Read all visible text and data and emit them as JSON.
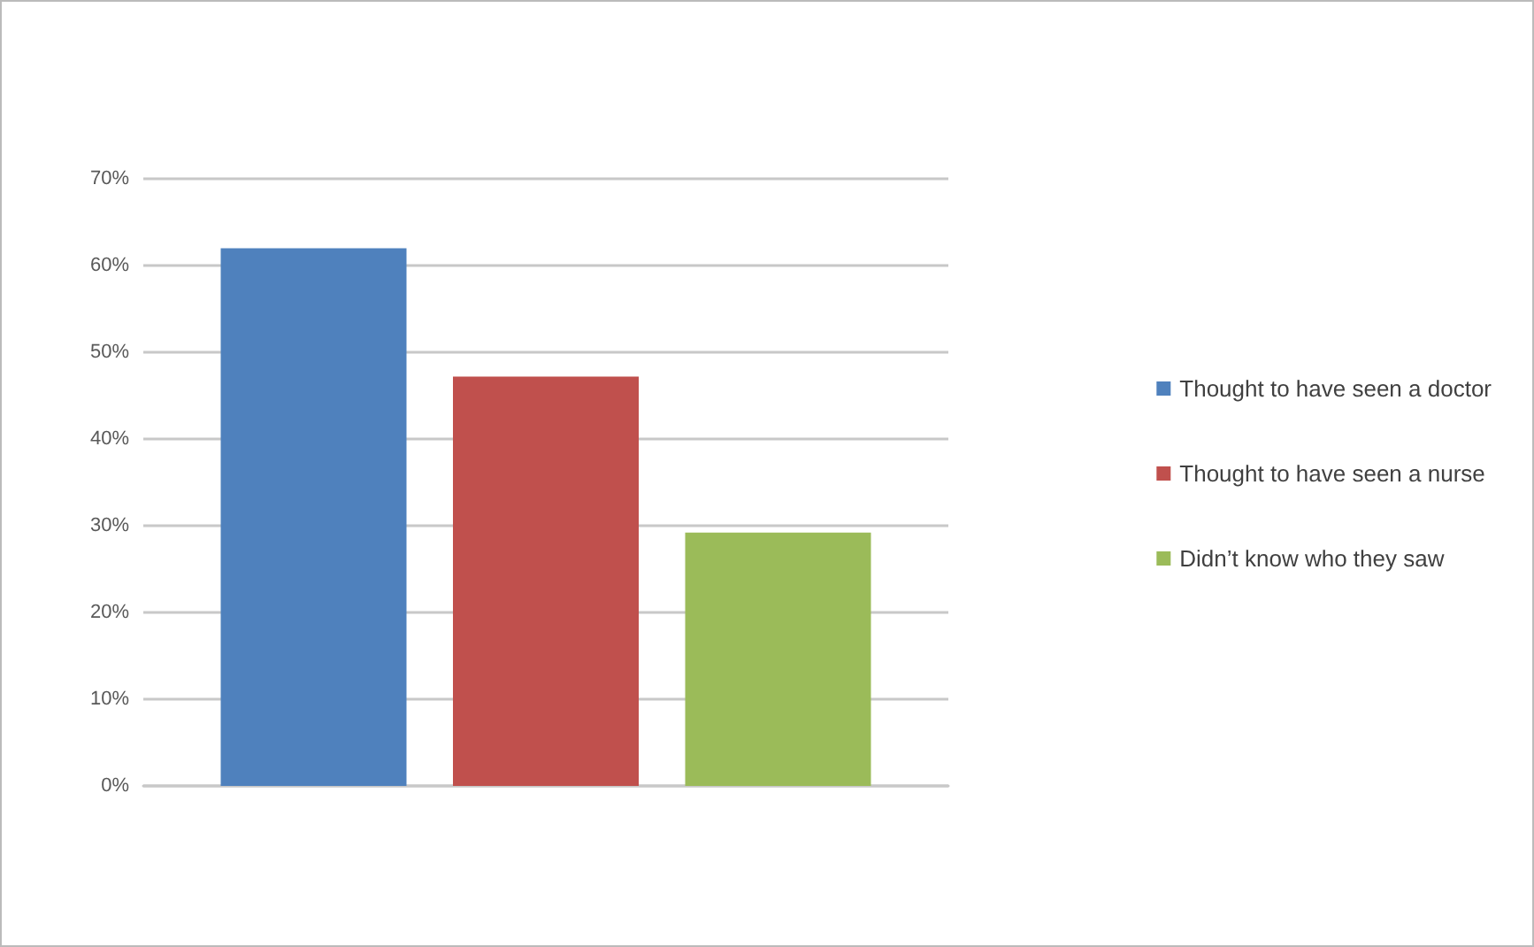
{
  "chart_data": {
    "type": "bar",
    "categories": [
      null
    ],
    "series": [
      {
        "name": "Thought to have seen a doctor",
        "color": "#4f81bd",
        "values": [
          62
        ]
      },
      {
        "name": "Thought to have seen a nurse",
        "color": "#c0504d",
        "values": [
          47.2
        ]
      },
      {
        "name": "Didn’t know who they saw",
        "color": "#9bbb59",
        "values": [
          29.2
        ]
      }
    ],
    "ylim": [
      0,
      70
    ],
    "yticks": [
      {
        "value": 0,
        "label": "0%"
      },
      {
        "value": 10,
        "label": "10%"
      },
      {
        "value": 20,
        "label": "20%"
      },
      {
        "value": 30,
        "label": "30%"
      },
      {
        "value": 40,
        "label": "40%"
      },
      {
        "value": 50,
        "label": "50%"
      },
      {
        "value": 60,
        "label": "60%"
      },
      {
        "value": 70,
        "label": "70%"
      }
    ],
    "grid": "y",
    "legend": "right"
  }
}
